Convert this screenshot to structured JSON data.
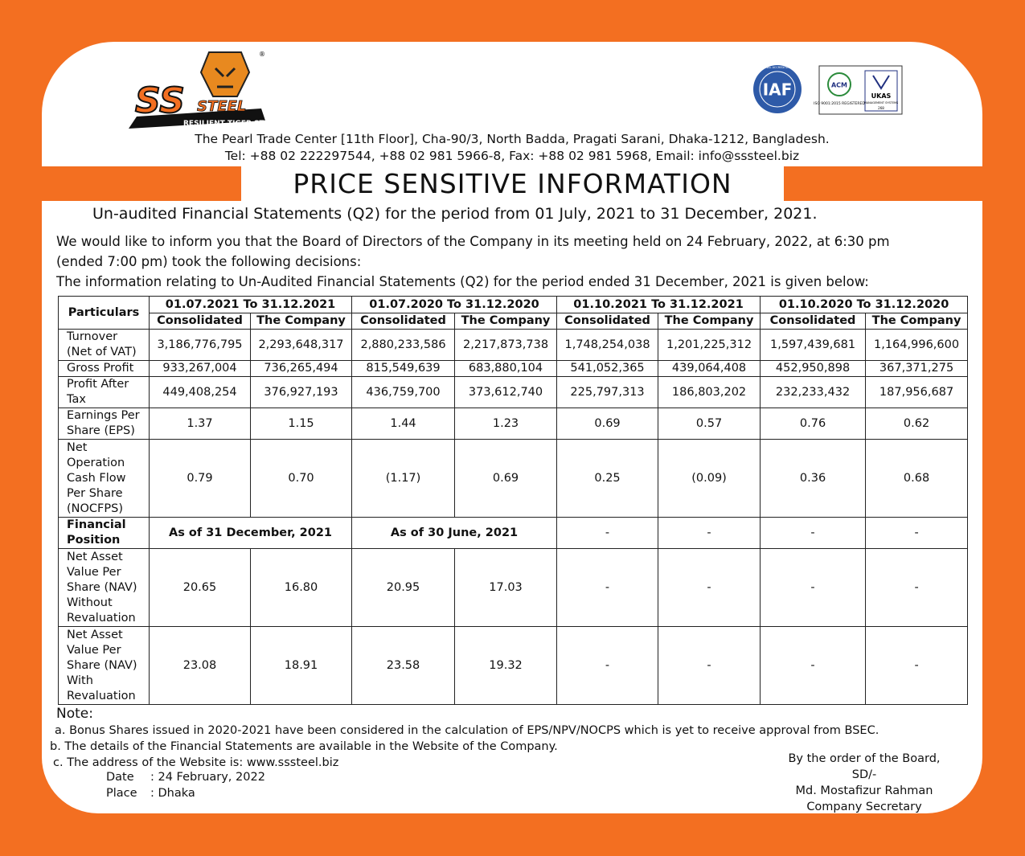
{
  "logo": {
    "brand": "SS",
    "brand2": "STEEL",
    "tagline": "RESILIENT TIGER STRENGTH",
    "reg": "®"
  },
  "certs": {
    "iaf_ring": "INTERNATIONAL ACCREDITATION FORUM",
    "iaf": "IAF",
    "acm": "ACM",
    "iso": "ISO 9001:2015 REGISTERED",
    "ukas": "UKAS",
    "ukas_sub": "MANAGEMENT SYSTEMS",
    "ukas_no": "268"
  },
  "header": {
    "address": "The Pearl Trade Center [11th Floor], Cha-90/3, North Badda, Pragati Sarani, Dhaka-1212, Bangladesh.",
    "contact": "Tel: +88 02 222297544, +88 02 981 5966-8, Fax: +88 02 981 5968, Email: info@sssteel.biz"
  },
  "title": "PRICE SENSITIVE INFORMATION",
  "subtitle": "Un-audited Financial Statements (Q2) for the period from 01 July, 2021 to 31 December, 2021.",
  "intro": [
    "We would like to inform you that the Board of Directors of the Company in its meeting held on 24 February, 2022, at 6:30 pm",
    "(ended 7:00 pm) took the following decisions:",
    "The information relating to Un-Audited Financial Statements (Q2) for the period ended 31 December, 2021 is given below:"
  ],
  "table": {
    "corner": "Particulars",
    "periods": [
      "01.07.2021 To 31.12.2021",
      "01.07.2020 To 31.12.2020",
      "01.10.2021 To 31.12.2021",
      "01.10.2020 To 31.12.2020"
    ],
    "subheads": [
      "Consolidated",
      "The Company"
    ],
    "rows": [
      [
        "Turnover (Net of VAT)",
        "3,186,776,795",
        "2,293,648,317",
        "2,880,233,586",
        "2,217,873,738",
        "1,748,254,038",
        "1,201,225,312",
        "1,597,439,681",
        "1,164,996,600"
      ],
      [
        "Gross Profit",
        "933,267,004",
        "736,265,494",
        "815,549,639",
        "683,880,104",
        "541,052,365",
        "439,064,408",
        "452,950,898",
        "367,371,275"
      ],
      [
        "Profit After Tax",
        "449,408,254",
        "376,927,193",
        "436,759,700",
        "373,612,740",
        "225,797,313",
        "186,803,202",
        "232,233,432",
        "187,956,687"
      ],
      [
        "Earnings Per Share (EPS)",
        "1.37",
        "1.15",
        "1.44",
        "1.23",
        "0.69",
        "0.57",
        "0.76",
        "0.62"
      ],
      [
        "Net Operation Cash Flow Per Share (NOCFPS)",
        "0.79",
        "0.70",
        "(1.17)",
        "0.69",
        "0.25",
        "(0.09)",
        "0.36",
        "0.68"
      ],
      [
        "Financial Position",
        "As of 31 December, 2021",
        "As of 30 June, 2021",
        "-",
        "-",
        "-",
        "-"
      ],
      [
        "Net Asset Value Per Share (NAV) Without Revaluation",
        "20.65",
        "16.80",
        "20.95",
        "17.03",
        "-",
        "-",
        "-",
        "-"
      ],
      [
        "Net Asset Value Per Share (NAV) With Revaluation",
        "23.08",
        "18.91",
        "23.58",
        "19.32",
        "-",
        "-",
        "-",
        "-"
      ]
    ]
  },
  "notes": {
    "heading": "Note:",
    "items": [
      "a. Bonus Shares issued in 2020-2021 have been considered in the calculation of EPS/NPV/NOCPS which is yet to receive approval from BSEC.",
      "b. The details of the Financial Statements are available in the Website of the Company.",
      "c. The address of the Website is: www.sssteel.biz"
    ]
  },
  "date": {
    "label": "Date",
    "value": ": 24 February, 2022"
  },
  "place": {
    "label": "Place",
    "value": ": Dhaka"
  },
  "signature": [
    "By the order of the Board,",
    "SD/-",
    "Md. Mostafizur Rahman",
    "Company Secretary"
  ]
}
